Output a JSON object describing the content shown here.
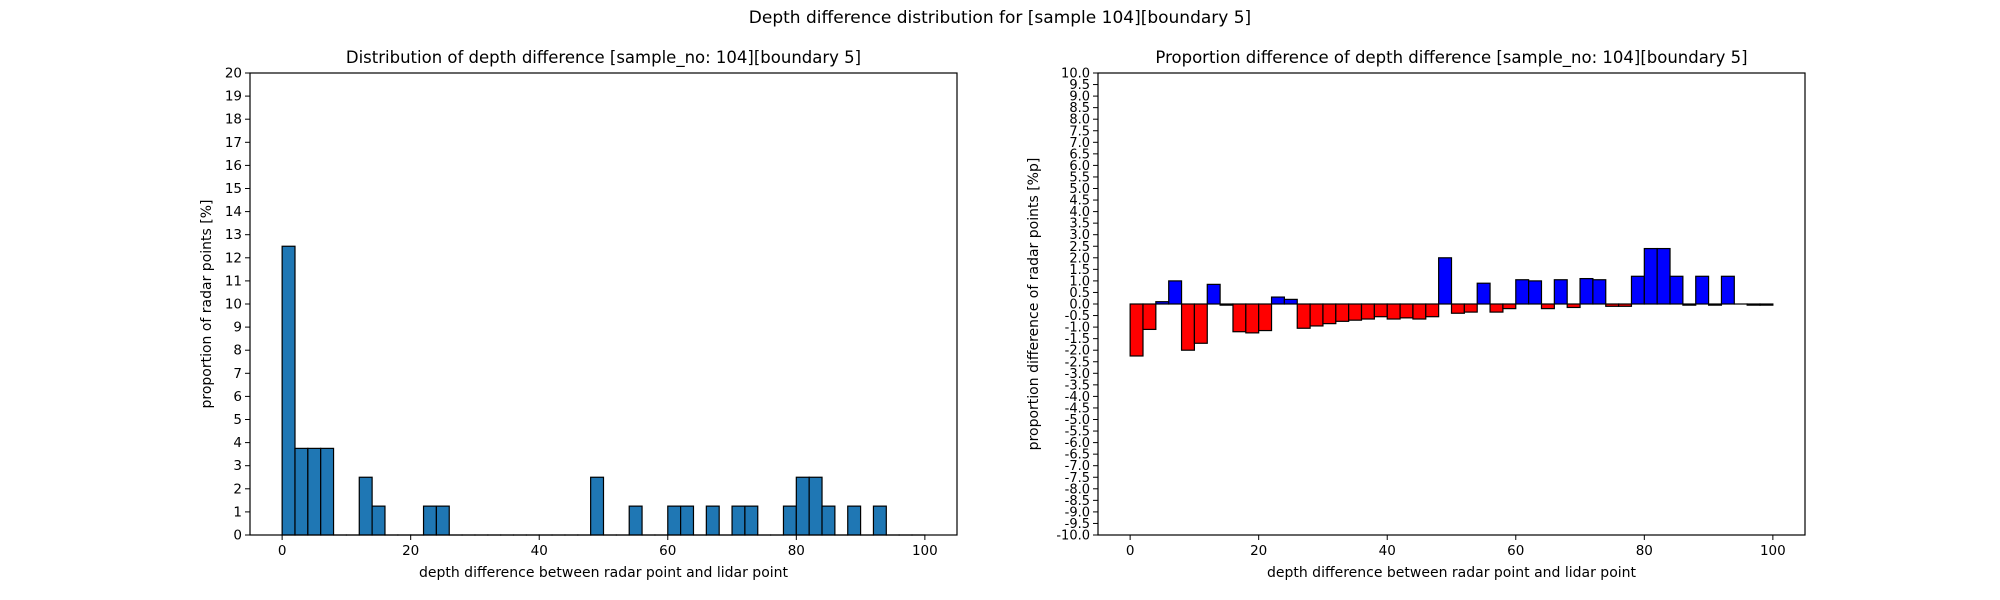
{
  "figure": {
    "title": "Depth difference distribution for [sample 104][boundary 5]"
  },
  "chart_data": [
    {
      "type": "bar",
      "title": "Distribution of depth difference [sample_no: 104][boundary 5]",
      "xlabel": "depth difference between radar point and lidar point",
      "ylabel": "proportion of radar points [%]",
      "xlim": [
        -5,
        105
      ],
      "ylim": [
        0,
        20
      ],
      "xticks": [
        0,
        20,
        40,
        60,
        80,
        100
      ],
      "yticks": [
        0,
        1,
        2,
        3,
        4,
        5,
        6,
        7,
        8,
        9,
        10,
        11,
        12,
        13,
        14,
        15,
        16,
        17,
        18,
        19,
        20
      ],
      "bin_width": 2,
      "bin_starts": [
        0,
        2,
        4,
        6,
        8,
        10,
        12,
        14,
        16,
        18,
        20,
        22,
        24,
        26,
        28,
        30,
        32,
        34,
        36,
        38,
        40,
        42,
        44,
        46,
        48,
        50,
        52,
        54,
        56,
        58,
        60,
        62,
        64,
        66,
        68,
        70,
        72,
        74,
        76,
        78,
        80,
        82,
        84,
        86,
        88,
        90,
        92,
        94,
        96,
        98
      ],
      "values": [
        12.5,
        3.75,
        3.75,
        3.75,
        0,
        0,
        2.5,
        1.25,
        0,
        0,
        0,
        1.25,
        1.25,
        0,
        0,
        0,
        0,
        0,
        0,
        0,
        0,
        0,
        0,
        0,
        2.5,
        0,
        0,
        1.25,
        0,
        0,
        1.25,
        1.25,
        0,
        1.25,
        0,
        1.25,
        1.25,
        0,
        0,
        1.25,
        2.5,
        2.5,
        1.25,
        0,
        1.25,
        0,
        1.25,
        0,
        0,
        0
      ],
      "colors": {
        "bar": "#1f77b4",
        "edge": "#000000"
      }
    },
    {
      "type": "bar",
      "title": "Proportion difference of depth difference [sample_no: 104][boundary 5]",
      "xlabel": "depth difference between radar point and lidar point",
      "ylabel": "proportion difference of radar points [%p]",
      "xlim": [
        -5,
        105
      ],
      "ylim": [
        -10,
        10
      ],
      "xticks": [
        0,
        20,
        40,
        60,
        80,
        100
      ],
      "yticks": [
        "10.0",
        "9.5",
        "9.0",
        "8.5",
        "8.0",
        "7.5",
        "7.0",
        "6.5",
        "6.0",
        "5.5",
        "5.0",
        "4.5",
        "4.0",
        "3.5",
        "3.0",
        "2.5",
        "2.0",
        "1.5",
        "1.0",
        "0.5",
        "0.0",
        "-0.5",
        "-1.0",
        "-1.5",
        "-2.0",
        "-2.5",
        "-3.0",
        "-3.5",
        "-4.0",
        "-4.5",
        "-5.0",
        "-5.5",
        "-6.0",
        "-6.5",
        "-7.0",
        "-7.5",
        "-8.0",
        "-8.5",
        "-9.0",
        "-9.5",
        "-10.0"
      ],
      "bin_width": 2,
      "bin_starts": [
        0,
        2,
        4,
        6,
        8,
        10,
        12,
        14,
        16,
        18,
        20,
        22,
        24,
        26,
        28,
        30,
        32,
        34,
        36,
        38,
        40,
        42,
        44,
        46,
        48,
        50,
        52,
        54,
        56,
        58,
        60,
        62,
        64,
        66,
        68,
        70,
        72,
        74,
        76,
        78,
        80,
        82,
        84,
        86,
        88,
        90,
        92,
        94,
        96,
        98
      ],
      "values": [
        -2.25,
        -1.1,
        0.1,
        1.0,
        -2.0,
        -1.7,
        0.85,
        -0.05,
        -1.2,
        -1.25,
        -1.15,
        0.3,
        0.2,
        -1.05,
        -0.95,
        -0.85,
        -0.75,
        -0.7,
        -0.65,
        -0.55,
        -0.65,
        -0.6,
        -0.65,
        -0.55,
        2.0,
        -0.4,
        -0.35,
        0.9,
        -0.35,
        -0.2,
        1.05,
        1.0,
        -0.2,
        1.05,
        -0.15,
        1.1,
        1.05,
        -0.1,
        -0.1,
        1.2,
        2.4,
        2.4,
        1.2,
        -0.05,
        1.2,
        -0.05,
        1.2,
        0,
        -0.05,
        -0.05
      ],
      "colors": {
        "positive": "#0000ff",
        "negative": "#ff0000",
        "edge": "#000000"
      }
    }
  ]
}
